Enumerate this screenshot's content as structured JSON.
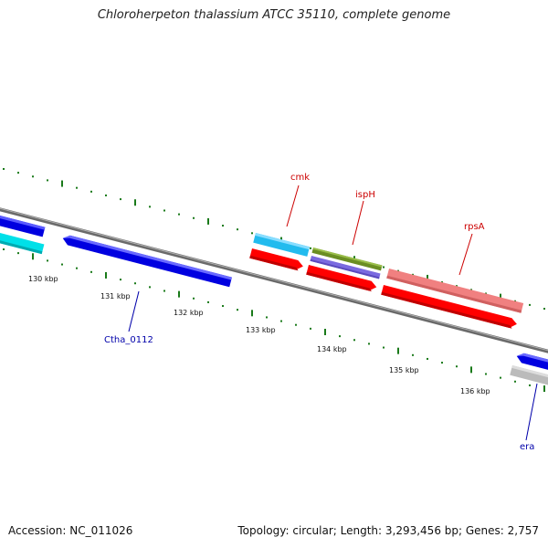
{
  "title": "Chloroherpeton thalassium ATCC 35110, complete genome",
  "footer": {
    "accession": "Accession: NC_011026",
    "summary": "Topology: circular; Length: 3,293,456 bp; Genes: 2,757"
  },
  "ticks": {
    "labels": [
      "130 kbp",
      "131 kbp",
      "132 kbp",
      "133 kbp",
      "134 kbp",
      "135 kbp",
      "136 kbp"
    ]
  },
  "genes": {
    "cmk": "cmk",
    "ispH": "ispH",
    "rpsA": "rpsA",
    "ctha": "Ctha_0112",
    "era": "era"
  },
  "colors": {
    "backbone": "#808080",
    "tick": "#1a7a1a",
    "blue": "#0000e0",
    "cyan": "#00e0e8",
    "sky": "#22bbee",
    "red": "#ff0000",
    "olive": "#6b8e23",
    "slate": "#7a6ae0",
    "pink": "#f08080",
    "grey": "#bbbbbb",
    "label_red": "#cc0000",
    "label_blue": "#0000aa"
  }
}
